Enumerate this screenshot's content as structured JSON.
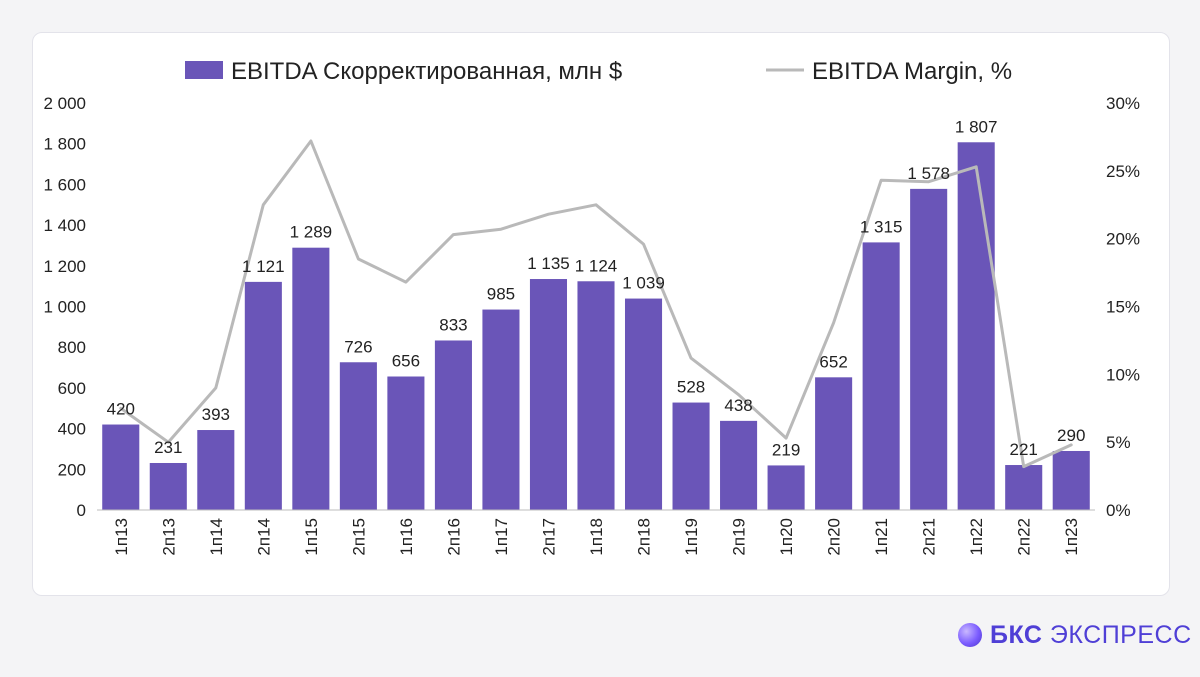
{
  "chart_data": {
    "type": "bar",
    "categories": [
      "1п13",
      "2п13",
      "1п14",
      "2п14",
      "1п15",
      "2п15",
      "1п16",
      "2п16",
      "1п17",
      "2п17",
      "1п18",
      "2п18",
      "1п19",
      "2п19",
      "1п20",
      "2п20",
      "1п21",
      "2п21",
      "1п22",
      "2п22",
      "1п23"
    ],
    "series": [
      {
        "name": "EBITDA Скорректированная, млн $",
        "type": "bar",
        "axis": "left",
        "values": [
          420,
          231,
          393,
          1121,
          1289,
          726,
          656,
          833,
          985,
          1135,
          1124,
          1039,
          528,
          438,
          219,
          652,
          1315,
          1578,
          1807,
          221,
          290
        ],
        "labels": [
          "420",
          "231",
          "393",
          "1 121",
          "1 289",
          "726",
          "656",
          "833",
          "985",
          "1 135",
          "1 124",
          "1 039",
          "528",
          "438",
          "219",
          "652",
          "1 315",
          "1 578",
          "1 807",
          "221",
          "290"
        ],
        "color": "#6a55b8"
      },
      {
        "name": "EBITDA Margin, %",
        "type": "line",
        "axis": "right",
        "values": [
          7.5,
          5.0,
          9.0,
          22.5,
          27.2,
          18.5,
          16.8,
          20.3,
          20.7,
          21.8,
          22.5,
          19.6,
          11.2,
          8.5,
          5.3,
          13.8,
          24.3,
          24.2,
          25.3,
          3.2,
          4.8
        ],
        "color": "#b9b9b9"
      }
    ],
    "y_left": {
      "min": 0,
      "max": 2000,
      "ticks": [
        0,
        200,
        400,
        600,
        800,
        1000,
        1200,
        1400,
        1600,
        1800,
        2000
      ],
      "tick_labels": [
        "0",
        "200",
        "400",
        "600",
        "800",
        "1 000",
        "1 200",
        "1 400",
        "1 600",
        "1 800",
        "2 000"
      ]
    },
    "y_right": {
      "min": 0,
      "max": 30,
      "ticks": [
        0,
        5,
        10,
        15,
        20,
        25,
        30
      ],
      "tick_labels": [
        "0%",
        "5%",
        "10%",
        "15%",
        "20%",
        "25%",
        "30%"
      ]
    },
    "legend_position": "top",
    "grid": false
  },
  "brand": {
    "bold": "БКС",
    "regular": "ЭКСПРЕСС"
  },
  "icons": {
    "brand": "bks-sphere-icon"
  }
}
